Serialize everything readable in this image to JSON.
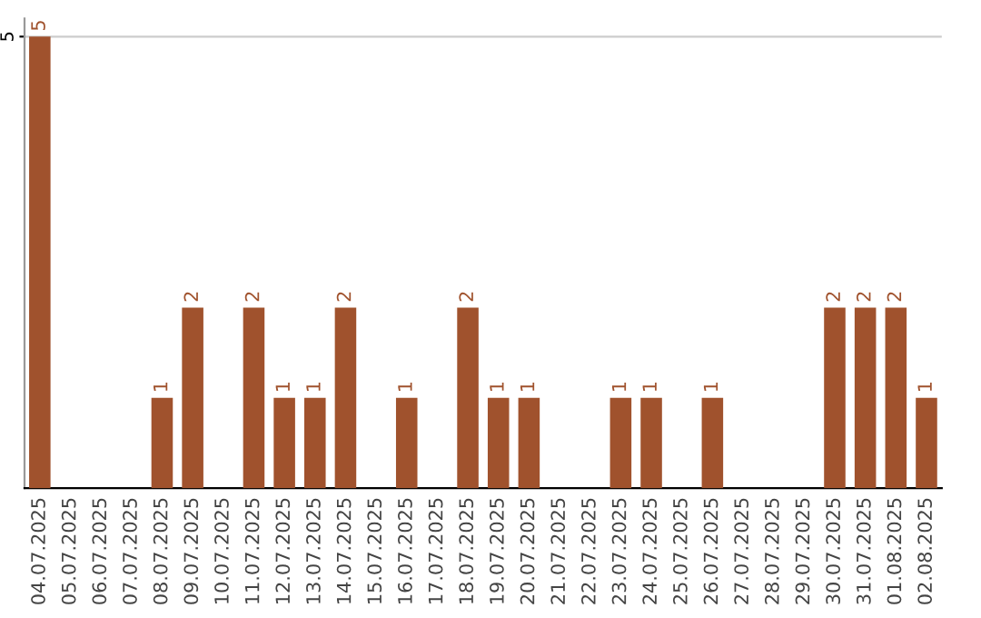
{
  "chart_data": {
    "type": "bar",
    "categories": [
      "04.07.2025",
      "05.07.2025",
      "06.07.2025",
      "07.07.2025",
      "08.07.2025",
      "09.07.2025",
      "10.07.2025",
      "11.07.2025",
      "12.07.2025",
      "13.07.2025",
      "14.07.2025",
      "15.07.2025",
      "16.07.2025",
      "17.07.2025",
      "18.07.2025",
      "19.07.2025",
      "20.07.2025",
      "21.07.2025",
      "22.07.2025",
      "23.07.2025",
      "24.07.2025",
      "25.07.2025",
      "26.07.2025",
      "27.07.2025",
      "28.07.2025",
      "29.07.2025",
      "30.07.2025",
      "31.07.2025",
      "01.08.2025",
      "02.08.2025"
    ],
    "values": [
      5,
      0,
      0,
      0,
      1,
      2,
      0,
      2,
      1,
      1,
      2,
      0,
      1,
      0,
      2,
      1,
      1,
      0,
      0,
      1,
      1,
      0,
      1,
      0,
      0,
      0,
      2,
      2,
      2,
      1
    ],
    "value_labels": [
      "5",
      null,
      null,
      null,
      "1",
      "2",
      null,
      "2",
      "1",
      "1",
      "2",
      null,
      "1",
      null,
      "2",
      "1",
      "1",
      null,
      null,
      "1",
      "1",
      null,
      "1",
      null,
      null,
      null,
      "2",
      "2",
      "2",
      "1"
    ],
    "color": "#a0522d",
    "ylim": [
      0,
      5.2
    ],
    "yticks": [
      5
    ],
    "grid": "y"
  }
}
